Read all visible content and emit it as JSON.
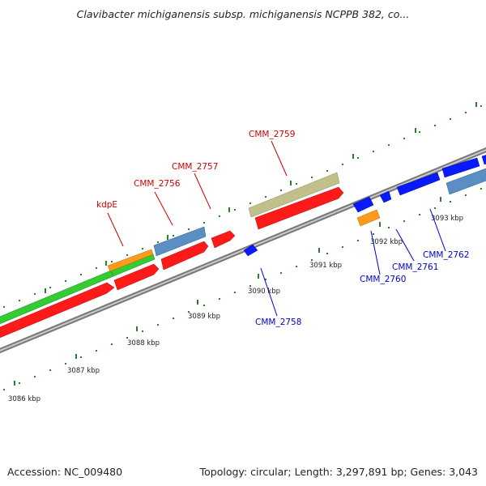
{
  "title": "Clavibacter michiganensis subsp. michiganensis NCPPB 382, co...",
  "footer": {
    "accession": "Accession: NC_009480",
    "summary": "Topology: circular; Length: 3,297,891 bp; Genes: 3,043"
  },
  "colors": {
    "forward_label": "#cc0000",
    "reverse_label": "#0000cc",
    "backbone": "#999999",
    "ticks": "#2e7d2e"
  },
  "ticks": [
    "3086 kbp",
    "3087 kbp",
    "3088 kbp",
    "3089 kbp",
    "3090 kbp",
    "3091 kbp",
    "3092 kbp",
    "3093 kbp"
  ],
  "gene_labels": {
    "forward": [
      "kdpE",
      "CMM_2756",
      "CMM_2757",
      "CMM_2759"
    ],
    "reverse": [
      "CMM_2758",
      "CMM_2760",
      "CMM_2761",
      "CMM_2762"
    ]
  }
}
